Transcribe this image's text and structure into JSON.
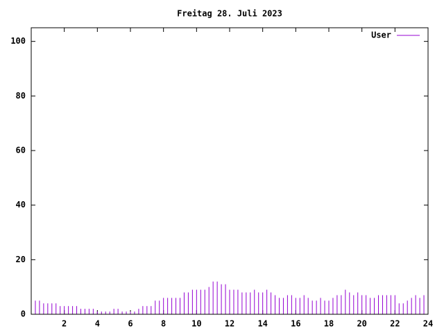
{
  "chart_data": {
    "type": "impulse",
    "title": "Freitag 28. Juli 2023",
    "x": [
      0,
      0.25,
      0.5,
      0.75,
      1,
      1.25,
      1.5,
      1.75,
      2,
      2.25,
      2.5,
      2.75,
      3,
      3.25,
      3.5,
      3.75,
      4,
      4.25,
      4.5,
      4.75,
      5,
      5.25,
      5.5,
      5.75,
      6,
      6.25,
      6.5,
      6.75,
      7,
      7.25,
      7.5,
      7.75,
      8,
      8.25,
      8.5,
      8.75,
      9,
      9.25,
      9.5,
      9.75,
      10,
      10.25,
      10.5,
      10.75,
      11,
      11.25,
      11.5,
      11.75,
      12,
      12.25,
      12.5,
      12.75,
      13,
      13.25,
      13.5,
      13.75,
      14,
      14.25,
      14.5,
      14.75,
      15,
      15.25,
      15.5,
      15.75,
      16,
      16.25,
      16.5,
      16.75,
      17,
      17.25,
      17.5,
      17.75,
      18,
      18.25,
      18.5,
      18.75,
      19,
      19.25,
      19.5,
      19.75,
      20,
      20.25,
      20.5,
      20.75,
      21,
      21.25,
      21.5,
      21.75,
      22,
      22.25,
      22.5,
      22.75,
      23,
      23.25,
      23.5,
      23.75
    ],
    "series": [
      {
        "name": "User",
        "color": "#9400d3",
        "values": [
          4,
          5,
          5,
          4,
          4,
          4,
          4,
          3,
          3,
          3,
          3,
          3,
          2,
          2,
          2,
          2,
          1,
          1,
          1,
          1,
          2,
          2,
          1,
          1,
          1,
          1,
          2,
          3,
          3,
          3,
          5,
          5,
          6,
          6,
          6,
          6,
          6,
          8,
          8,
          9,
          9,
          9,
          9,
          10,
          12,
          12,
          11,
          11,
          9,
          9,
          9,
          8,
          8,
          8,
          9,
          8,
          8,
          9,
          8,
          7,
          6,
          6,
          7,
          7,
          6,
          6,
          7,
          6,
          5,
          5,
          6,
          5,
          5,
          6,
          7,
          7,
          9,
          8,
          7,
          8,
          7,
          7,
          6,
          6,
          7,
          7,
          7,
          7,
          7,
          4,
          4,
          5,
          6,
          7,
          6,
          7
        ]
      }
    ],
    "xlim": [
      0,
      24
    ],
    "ylim": [
      0,
      105
    ],
    "xticks": [
      2,
      4,
      6,
      8,
      10,
      12,
      14,
      16,
      18,
      20,
      22,
      24
    ],
    "yticks": [
      0,
      20,
      40,
      60,
      80,
      100
    ],
    "legend": "top-right"
  }
}
